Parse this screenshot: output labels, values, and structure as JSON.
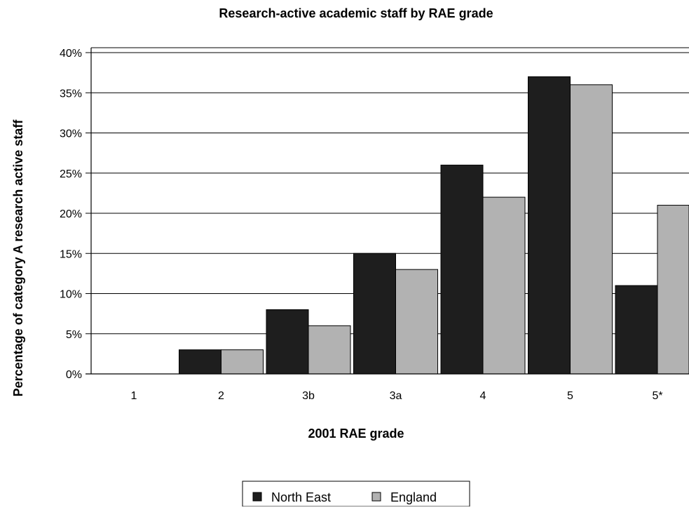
{
  "chart_data": {
    "type": "bar",
    "title": "Research-active academic staff by RAE grade",
    "xlabel": "2001 RAE grade",
    "ylabel": "Percentage of category A research active staff",
    "categories": [
      "1",
      "2",
      "3b",
      "3a",
      "4",
      "5",
      "5*"
    ],
    "series": [
      {
        "name": "North East",
        "values": [
          0,
          3,
          8,
          15,
          26,
          37,
          11
        ],
        "color": "#1e1e1e"
      },
      {
        "name": "England",
        "values": [
          0,
          3,
          6,
          13,
          22,
          36,
          21
        ],
        "color": "#b2b2b2"
      }
    ],
    "ylim": [
      0,
      40
    ],
    "yticks": [
      0,
      5,
      10,
      15,
      20,
      25,
      30,
      35,
      40
    ],
    "ytick_labels": [
      "0%",
      "5%",
      "10%",
      "15%",
      "20%",
      "25%",
      "30%",
      "35%",
      "40%"
    ],
    "grid": true,
    "legend_position": "bottom-center"
  }
}
